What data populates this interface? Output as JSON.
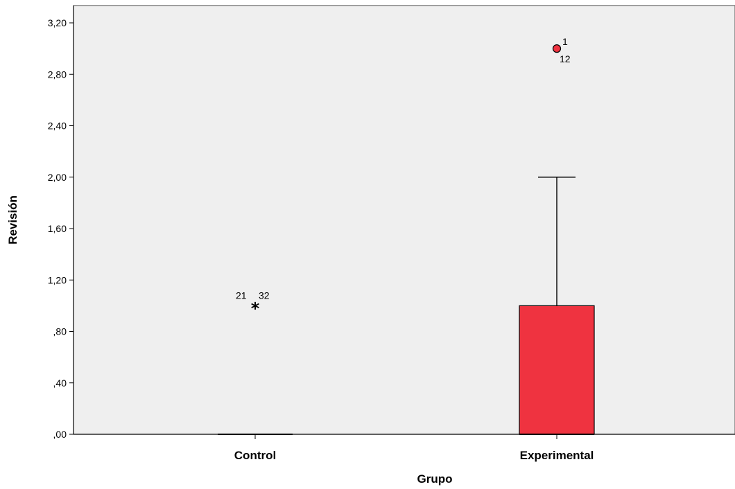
{
  "chart_data": {
    "type": "box",
    "xlabel": "Grupo",
    "ylabel": "Revisión",
    "ylim": [
      0,
      3.2
    ],
    "yticks": [
      {
        "value": 0,
        "label": ",00"
      },
      {
        "value": 0.4,
        "label": ",40"
      },
      {
        "value": 0.8,
        "label": ",80"
      },
      {
        "value": 1.2,
        "label": "1,20"
      },
      {
        "value": 1.6,
        "label": "1,60"
      },
      {
        "value": 2.0,
        "label": "2,00"
      },
      {
        "value": 2.4,
        "label": "2,40"
      },
      {
        "value": 2.8,
        "label": "2,80"
      },
      {
        "value": 3.2,
        "label": "3,20"
      }
    ],
    "grid": false,
    "background": "#efefef",
    "categories": [
      "Control",
      "Experimental"
    ],
    "boxes": [
      {
        "category": "Control",
        "q1": 0,
        "median": 0,
        "q3": 0,
        "whisker_low": 0,
        "whisker_high": 0,
        "color": "#ef3340",
        "outliers": [
          {
            "value": 1.0,
            "marker": "extreme",
            "labels": [
              "21",
              "32"
            ]
          }
        ]
      },
      {
        "category": "Experimental",
        "q1": 0,
        "median": 0,
        "q3": 1.0,
        "whisker_low": 0,
        "whisker_high": 2.0,
        "color": "#ef3340",
        "outliers": [
          {
            "value": 3.0,
            "marker": "circle",
            "labels": [
              "1",
              "12"
            ]
          }
        ]
      }
    ]
  }
}
